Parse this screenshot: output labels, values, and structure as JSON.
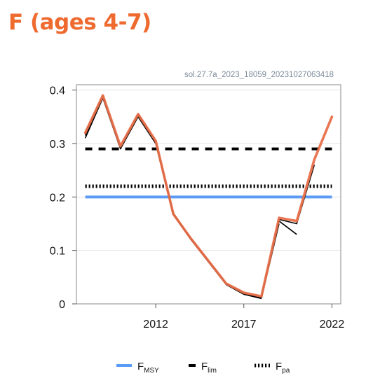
{
  "page": {
    "title": "F (ages 4-7)"
  },
  "chart_data": {
    "type": "line",
    "title": "F (ages 4-7)",
    "annotation": "sol.27.7a_2023_18059_20231027063418",
    "xlabel": "",
    "ylabel": "",
    "xlim": [
      2007.5,
      2022.5
    ],
    "ylim": [
      0,
      0.41
    ],
    "x_ticks": [
      "2012",
      "2017",
      "2022"
    ],
    "y_ticks": [
      "0",
      "0.1",
      "0.2",
      "0.3",
      "0.4"
    ],
    "grid": "horizontal",
    "legend": "bottom",
    "series": [
      {
        "kind": "retrospective",
        "color": "#000000",
        "runs": [
          {
            "x": [
              2008,
              2009,
              2010,
              2011,
              2012,
              2013,
              2014,
              2015,
              2016,
              2017,
              2018
            ],
            "y": [
              0.31,
              0.385,
              0.29,
              0.35,
              0.3,
              0.167,
              0.12,
              0.078,
              0.036,
              0.018,
              0.01
            ]
          },
          {
            "x": [
              2008,
              2009,
              2010,
              2011,
              2012,
              2013,
              2014,
              2015,
              2016,
              2017,
              2018,
              2019
            ],
            "y": [
              0.315,
              0.386,
              0.291,
              0.352,
              0.301,
              0.168,
              0.121,
              0.079,
              0.037,
              0.019,
              0.011,
              0.15
            ]
          },
          {
            "x": [
              2008,
              2009,
              2010,
              2011,
              2012,
              2013,
              2014,
              2015,
              2016,
              2017,
              2018,
              2019,
              2020
            ],
            "y": [
              0.318,
              0.388,
              0.292,
              0.354,
              0.302,
              0.169,
              0.122,
              0.079,
              0.037,
              0.019,
              0.012,
              0.155,
              0.13
            ]
          },
          {
            "x": [
              2008,
              2009,
              2010,
              2011,
              2012,
              2013,
              2014,
              2015,
              2016,
              2017,
              2018,
              2019,
              2020,
              2021
            ],
            "y": [
              0.32,
              0.389,
              0.293,
              0.355,
              0.303,
              0.17,
              0.122,
              0.08,
              0.038,
              0.02,
              0.013,
              0.158,
              0.15,
              0.26
            ]
          }
        ]
      },
      {
        "kind": "assessment",
        "color": "#e9704a",
        "x": [
          2008,
          2009,
          2010,
          2011,
          2012,
          2013,
          2014,
          2015,
          2016,
          2017,
          2018,
          2019,
          2020,
          2021,
          2022
        ],
        "y": [
          0.32,
          0.39,
          0.295,
          0.355,
          0.305,
          0.168,
          0.122,
          0.08,
          0.038,
          0.021,
          0.014,
          0.161,
          0.155,
          0.27,
          0.35
        ]
      }
    ],
    "reference_points": [
      {
        "name": "FMSY",
        "label": "F",
        "sub": "MSY",
        "value": 0.2,
        "color": "#5b9bf5",
        "style": "solid"
      },
      {
        "name": "Flim",
        "label": "F",
        "sub": "lim",
        "value": 0.29,
        "color": "#000000",
        "style": "dashed"
      },
      {
        "name": "Fpa",
        "label": "F",
        "sub": "pa",
        "value": 0.22,
        "color": "#000000",
        "style": "dotted"
      }
    ]
  }
}
